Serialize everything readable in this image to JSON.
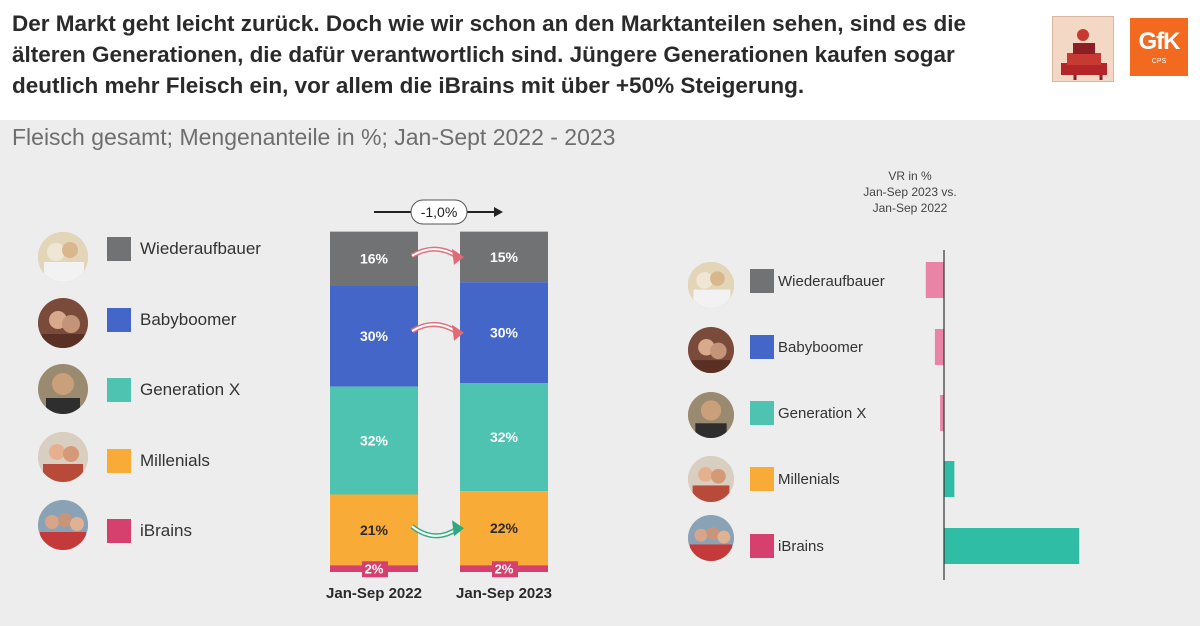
{
  "header": {
    "headline": "Der Markt geht leicht zurück. Doch wie wir schon an den Marktanteilen sehen, sind es die älteren Generationen, die dafür verantwortlich sind. Jüngere Generationen kaufen sogar deutlich mehr Fleisch ein, vor allem die iBrains mit über +50% Steigerung.",
    "logo_gfk": "GfK",
    "logo_cps": "CPS"
  },
  "subtitle": "Fleisch gesamt; Mengenanteile in %; Jan-Sept 2022 - 2023",
  "legend": [
    {
      "label": "Wiederaufbauer",
      "color": "#707274"
    },
    {
      "label": "Babyboomer",
      "color": "#4466c8"
    },
    {
      "label": "Generation X",
      "color": "#4ec3b2"
    },
    {
      "label": "Millenials",
      "color": "#f9ab38"
    },
    {
      "label": "iBrains",
      "color": "#d6406e"
    }
  ],
  "chart_data": [
    {
      "type": "bar",
      "stacked": true,
      "title": "Fleisch gesamt; Mengenanteile in %",
      "categories": [
        "Jan-Sep 2022",
        "Jan-Sep 2023"
      ],
      "series": [
        {
          "name": "iBrains",
          "values": [
            2,
            2
          ],
          "labels": [
            "2%",
            "2%"
          ],
          "color": "#d6406e"
        },
        {
          "name": "Millenials",
          "values": [
            21,
            22
          ],
          "labels": [
            "21%",
            "22%"
          ],
          "color": "#f9ab38"
        },
        {
          "name": "Generation X",
          "values": [
            32,
            32
          ],
          "labels": [
            "32%",
            "32%"
          ],
          "color": "#4ec3b2"
        },
        {
          "name": "Babyboomer",
          "values": [
            30,
            30
          ],
          "labels": [
            "30%",
            "30%"
          ],
          "color": "#4466c8"
        },
        {
          "name": "Wiederaufbauer",
          "values": [
            16,
            15
          ],
          "labels": [
            "16%",
            "15%"
          ],
          "color": "#707274"
        }
      ],
      "annotation": "-1,0%",
      "arrows": [
        {
          "series": "Wiederaufbauer",
          "direction": "down",
          "color": "#e06a78"
        },
        {
          "series": "Babyboomer",
          "direction": "down",
          "color": "#e06a78"
        },
        {
          "series": "Millenials",
          "direction": "up",
          "color": "#2ea87c"
        }
      ]
    },
    {
      "type": "bar",
      "orientation": "horizontal",
      "title": "VR in %",
      "title_lines": [
        "VR in %",
        "Jan-Sep 2023 vs.",
        "Jan-Sep 2022"
      ],
      "categories": [
        "Wiederaufbauer",
        "Babyboomer",
        "Generation X",
        "Millenials",
        "iBrains"
      ],
      "values": [
        -7,
        -3.5,
        -1.5,
        4,
        52
      ],
      "colors": [
        "#e984a7",
        "#e984a7",
        "#e984a7",
        "#2fbda5",
        "#2fbda5"
      ],
      "xlim": [
        -15,
        60
      ],
      "axis": "no tick labels"
    }
  ]
}
